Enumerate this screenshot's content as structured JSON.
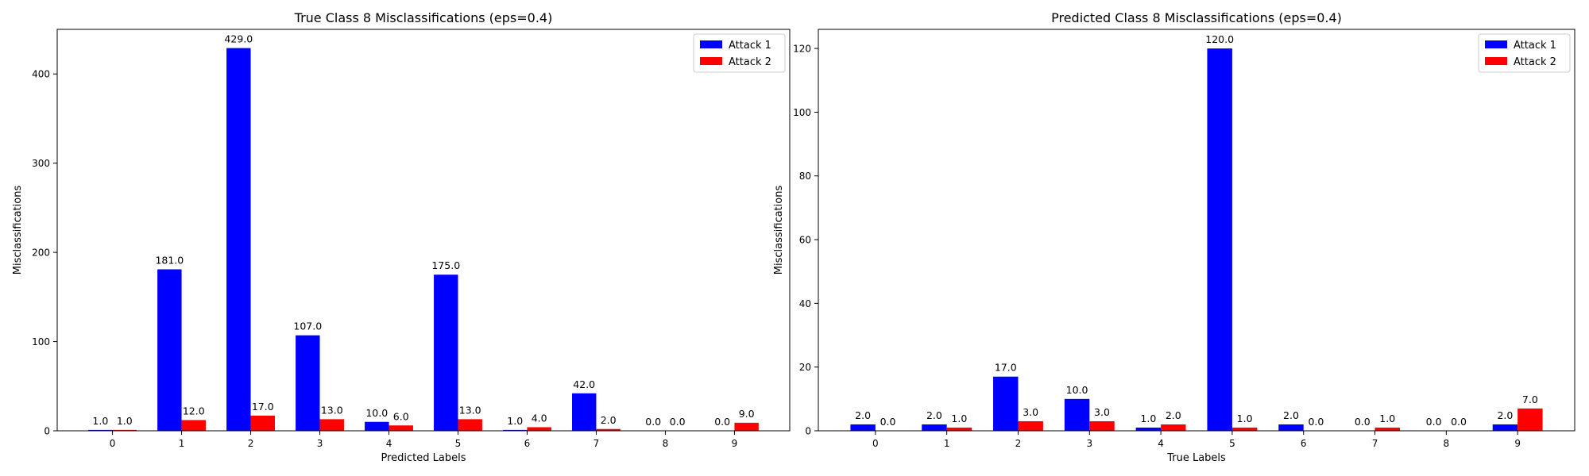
{
  "chart_data": [
    {
      "type": "bar",
      "title": "True Class 8 Misclassifications (eps=0.4)",
      "xlabel": "Predicted Labels",
      "ylabel": "Misclassifications",
      "categories": [
        "0",
        "1",
        "2",
        "3",
        "4",
        "5",
        "6",
        "7",
        "8",
        "9"
      ],
      "series": [
        {
          "name": "Attack 1",
          "color": "#0000ff",
          "values": [
            1.0,
            181.0,
            429.0,
            107.0,
            10.0,
            175.0,
            1.0,
            42.0,
            0.0,
            0.0
          ]
        },
        {
          "name": "Attack 2",
          "color": "#ff0000",
          "values": [
            1.0,
            12.0,
            17.0,
            13.0,
            6.0,
            13.0,
            4.0,
            2.0,
            0.0,
            9.0
          ]
        }
      ],
      "ylim": [
        0,
        450
      ],
      "yticks": [
        0,
        100,
        200,
        300,
        400
      ],
      "legend": "top-right",
      "grid": false
    },
    {
      "type": "bar",
      "title": "Predicted Class 8 Misclassifications (eps=0.4)",
      "xlabel": "True Labels",
      "ylabel": "Misclassifications",
      "categories": [
        "0",
        "1",
        "2",
        "3",
        "4",
        "5",
        "6",
        "7",
        "8",
        "9"
      ],
      "series": [
        {
          "name": "Attack 1",
          "color": "#0000ff",
          "values": [
            2.0,
            2.0,
            17.0,
            10.0,
            1.0,
            120.0,
            2.0,
            0.0,
            0.0,
            2.0
          ]
        },
        {
          "name": "Attack 2",
          "color": "#ff0000",
          "values": [
            0.0,
            1.0,
            3.0,
            3.0,
            2.0,
            1.0,
            0.0,
            1.0,
            0.0,
            7.0
          ]
        }
      ],
      "ylim": [
        0,
        126
      ],
      "yticks": [
        0,
        20,
        40,
        60,
        80,
        100,
        120
      ],
      "legend": "top-right",
      "grid": false
    }
  ]
}
